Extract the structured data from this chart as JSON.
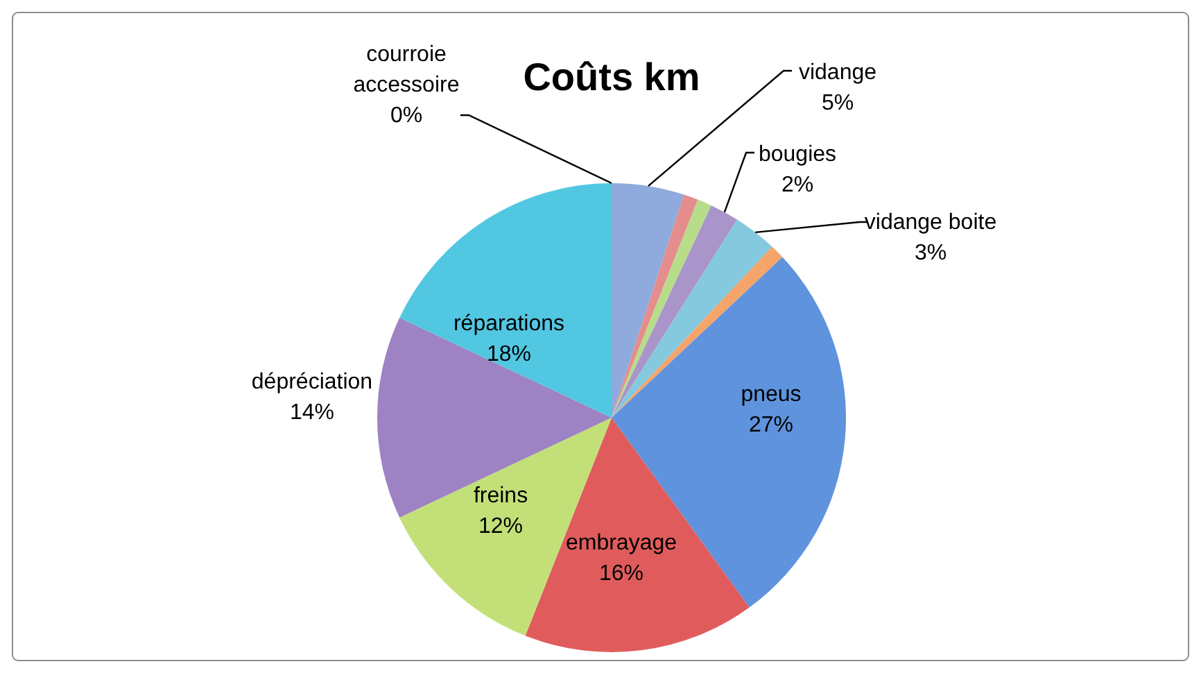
{
  "chart_data": {
    "type": "pie",
    "title": "Coûts km",
    "categories": [
      "vidange",
      null,
      null,
      "bougies",
      "vidange boite",
      null,
      "pneus",
      "embrayage",
      "freins",
      "dépréciation",
      "réparations",
      "courroie accessoire"
    ],
    "values": [
      5,
      1,
      1,
      2,
      3,
      1,
      27,
      16,
      12,
      14,
      18,
      0
    ],
    "value_labels": [
      "5%",
      null,
      null,
      "2%",
      "3%",
      null,
      "27%",
      "16%",
      "12%",
      "14%",
      "18%",
      "0%"
    ],
    "colors": [
      "#8fabdd",
      "#e58c8c",
      "#b7dc8a",
      "#a995c9",
      "#84c9de",
      "#f5a46a",
      "#5f93dd",
      "#e05c5c",
      "#c3e078",
      "#9d82c4",
      "#52c7e2",
      "#f5a05a"
    ]
  }
}
